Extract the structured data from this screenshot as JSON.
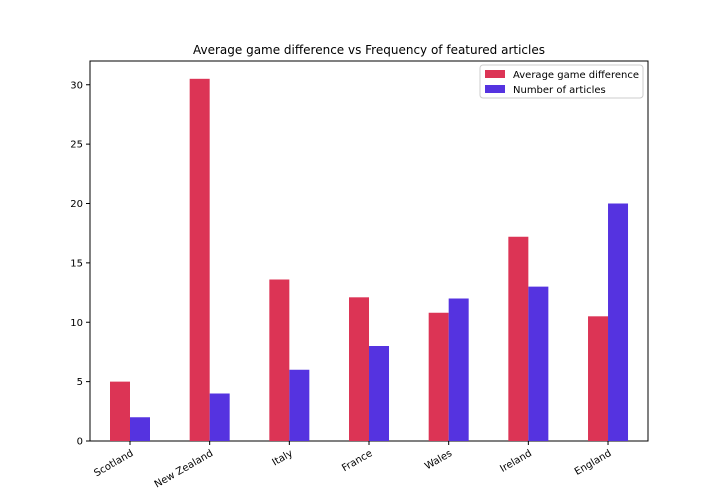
{
  "chart_data": {
    "type": "bar",
    "title": "Average game difference vs Frequency of featured articles",
    "xlabel": "",
    "ylabel": "",
    "categories": [
      "Scotland",
      "New Zealand",
      "Italy",
      "France",
      "Wales",
      "Ireland",
      "England"
    ],
    "series": [
      {
        "name": "Average game difference",
        "color": "#dc3455",
        "values": [
          5.0,
          30.5,
          13.6,
          12.1,
          10.8,
          17.2,
          10.5
        ]
      },
      {
        "name": "Number of articles",
        "color": "#5533e0",
        "values": [
          2,
          4,
          6,
          8,
          12,
          13,
          20
        ]
      }
    ],
    "ylim": [
      0,
      32
    ],
    "yticks": [
      0,
      5,
      10,
      15,
      20,
      25,
      30
    ],
    "grid": false,
    "legend_position": "top-right",
    "xtick_rotation": 30
  }
}
